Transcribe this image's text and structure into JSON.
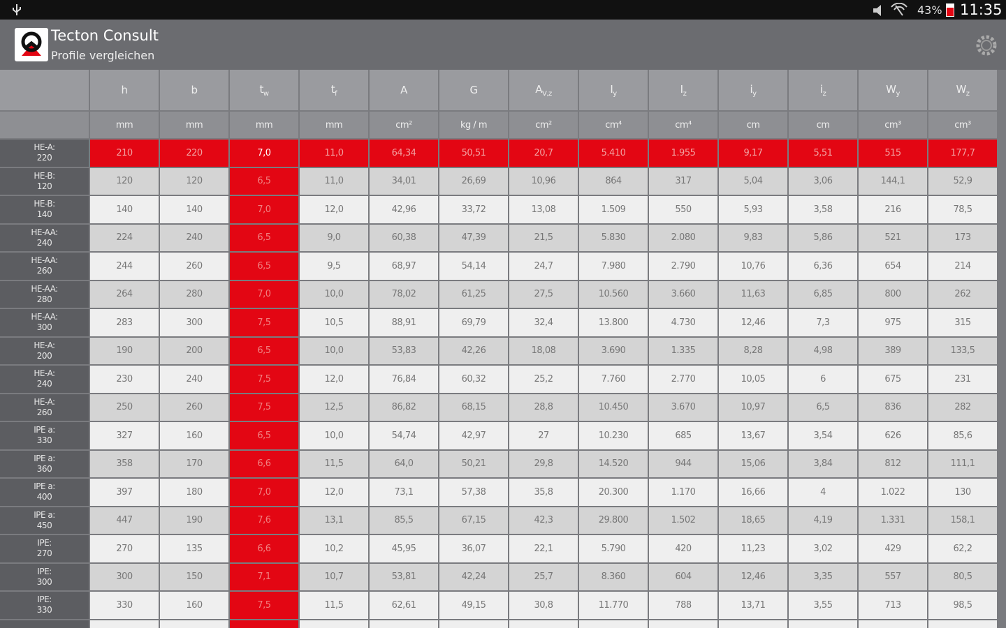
{
  "status_bar": {
    "battery": "43%",
    "time": "11:35"
  },
  "app_bar": {
    "title": "Tecton Consult",
    "subtitle": "Profile vergleichen"
  },
  "table": {
    "headers": [
      {
        "symbol": "h"
      },
      {
        "symbol": "b"
      },
      {
        "symbol": "t",
        "sub": "w"
      },
      {
        "symbol": "t",
        "sub": "f"
      },
      {
        "symbol": "A"
      },
      {
        "symbol": "G"
      },
      {
        "symbol": "A",
        "sub": "V,z"
      },
      {
        "symbol": "I",
        "sub": "y"
      },
      {
        "symbol": "I",
        "sub": "z"
      },
      {
        "symbol": "i",
        "sub": "y"
      },
      {
        "symbol": "i",
        "sub": "z"
      },
      {
        "symbol": "W",
        "sub": "y"
      },
      {
        "symbol": "W",
        "sub": "z"
      }
    ],
    "units": [
      "mm",
      "mm",
      "mm",
      "mm",
      "cm²",
      "kg / m",
      "cm²",
      "cm⁴",
      "cm⁴",
      "cm",
      "cm",
      "cm³",
      "cm³"
    ],
    "rows": [
      {
        "name": "HE-A:",
        "size": "220",
        "selected": true,
        "cells": [
          "210",
          "220",
          "7,0",
          "11,0",
          "64,34",
          "50,51",
          "20,7",
          "5.410",
          "1.955",
          "9,17",
          "5,51",
          "515",
          "177,7"
        ]
      },
      {
        "name": "HE-B:",
        "size": "120",
        "cells": [
          "120",
          "120",
          "6,5",
          "11,0",
          "34,01",
          "26,69",
          "10,96",
          "864",
          "317",
          "5,04",
          "3,06",
          "144,1",
          "52,9"
        ]
      },
      {
        "name": "HE-B:",
        "size": "140",
        "cells": [
          "140",
          "140",
          "7,0",
          "12,0",
          "42,96",
          "33,72",
          "13,08",
          "1.509",
          "550",
          "5,93",
          "3,58",
          "216",
          "78,5"
        ]
      },
      {
        "name": "HE-AA:",
        "size": "240",
        "cells": [
          "224",
          "240",
          "6,5",
          "9,0",
          "60,38",
          "47,39",
          "21,5",
          "5.830",
          "2.080",
          "9,83",
          "5,86",
          "521",
          "173"
        ]
      },
      {
        "name": "HE-AA:",
        "size": "260",
        "cells": [
          "244",
          "260",
          "6,5",
          "9,5",
          "68,97",
          "54,14",
          "24,7",
          "7.980",
          "2.790",
          "10,76",
          "6,36",
          "654",
          "214"
        ]
      },
      {
        "name": "HE-AA:",
        "size": "280",
        "cells": [
          "264",
          "280",
          "7,0",
          "10,0",
          "78,02",
          "61,25",
          "27,5",
          "10.560",
          "3.660",
          "11,63",
          "6,85",
          "800",
          "262"
        ]
      },
      {
        "name": "HE-AA:",
        "size": "300",
        "cells": [
          "283",
          "300",
          "7,5",
          "10,5",
          "88,91",
          "69,79",
          "32,4",
          "13.800",
          "4.730",
          "12,46",
          "7,3",
          "975",
          "315"
        ]
      },
      {
        "name": "HE-A:",
        "size": "200",
        "cells": [
          "190",
          "200",
          "6,5",
          "10,0",
          "53,83",
          "42,26",
          "18,08",
          "3.690",
          "1.335",
          "8,28",
          "4,98",
          "389",
          "133,5"
        ]
      },
      {
        "name": "HE-A:",
        "size": "240",
        "cells": [
          "230",
          "240",
          "7,5",
          "12,0",
          "76,84",
          "60,32",
          "25,2",
          "7.760",
          "2.770",
          "10,05",
          "6",
          "675",
          "231"
        ]
      },
      {
        "name": "HE-A:",
        "size": "260",
        "cells": [
          "250",
          "260",
          "7,5",
          "12,5",
          "86,82",
          "68,15",
          "28,8",
          "10.450",
          "3.670",
          "10,97",
          "6,5",
          "836",
          "282"
        ]
      },
      {
        "name": "IPE a:",
        "size": "330",
        "cells": [
          "327",
          "160",
          "6,5",
          "10,0",
          "54,74",
          "42,97",
          "27",
          "10.230",
          "685",
          "13,67",
          "3,54",
          "626",
          "85,6"
        ]
      },
      {
        "name": "IPE a:",
        "size": "360",
        "cells": [
          "358",
          "170",
          "6,6",
          "11,5",
          "64,0",
          "50,21",
          "29,8",
          "14.520",
          "944",
          "15,06",
          "3,84",
          "812",
          "111,1"
        ]
      },
      {
        "name": "IPE a:",
        "size": "400",
        "cells": [
          "397",
          "180",
          "7,0",
          "12,0",
          "73,1",
          "57,38",
          "35,8",
          "20.300",
          "1.170",
          "16,66",
          "4",
          "1.022",
          "130"
        ]
      },
      {
        "name": "IPE a:",
        "size": "450",
        "cells": [
          "447",
          "190",
          "7,6",
          "13,1",
          "85,5",
          "67,15",
          "42,3",
          "29.800",
          "1.502",
          "18,65",
          "4,19",
          "1.331",
          "158,1"
        ]
      },
      {
        "name": "IPE:",
        "size": "270",
        "cells": [
          "270",
          "135",
          "6,6",
          "10,2",
          "45,95",
          "36,07",
          "22,1",
          "5.790",
          "420",
          "11,23",
          "3,02",
          "429",
          "62,2"
        ]
      },
      {
        "name": "IPE:",
        "size": "300",
        "cells": [
          "300",
          "150",
          "7,1",
          "10,7",
          "53,81",
          "42,24",
          "25,7",
          "8.360",
          "604",
          "12,46",
          "3,35",
          "557",
          "80,5"
        ]
      },
      {
        "name": "IPE:",
        "size": "330",
        "cells": [
          "330",
          "160",
          "7,5",
          "11,5",
          "62,61",
          "49,15",
          "30,8",
          "11.770",
          "788",
          "13,71",
          "3,55",
          "713",
          "98,5"
        ]
      }
    ],
    "highlight_column": 2
  }
}
